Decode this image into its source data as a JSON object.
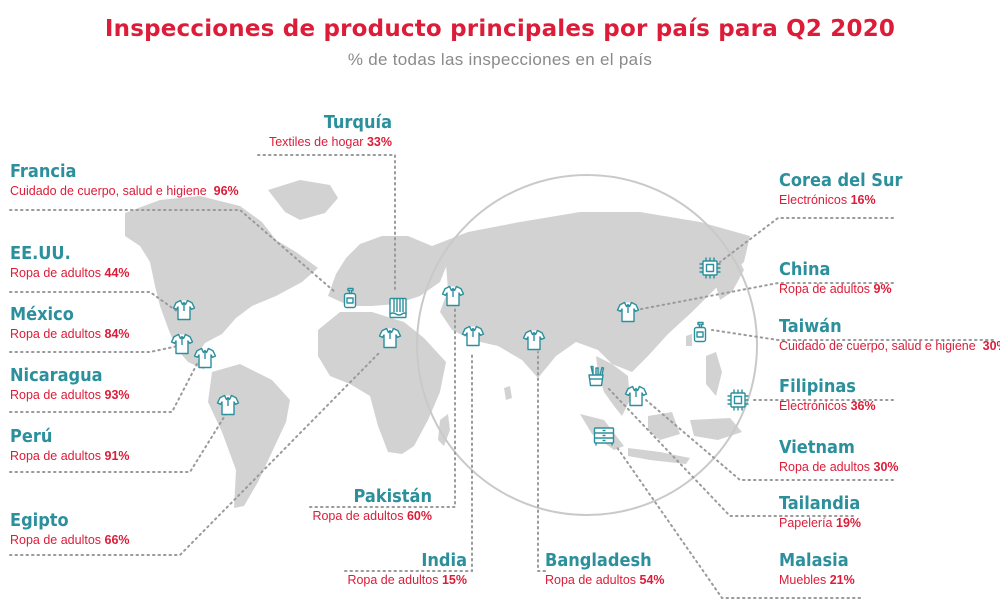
{
  "title": "Inspecciones de producto principales por país para Q2 2020",
  "subtitle": "% de todas las inspecciones en el país",
  "colors": {
    "accent": "#dc1c38",
    "country": "#2b8f9c",
    "land": "#d2d2d2",
    "leader": "#9a9a9a"
  },
  "countries": [
    {
      "id": "turquia",
      "name": "Turquía",
      "category": "Textiles de hogar",
      "percent": "33%",
      "icon": "towel-icon"
    },
    {
      "id": "francia",
      "name": "Francia",
      "category": "Cuidado de cuerpo, salud e higiene",
      "percent": "96%",
      "icon": "lotion-bottle-icon"
    },
    {
      "id": "eeuu",
      "name": "EE.UU.",
      "category": "Ropa de adultos",
      "percent": "44%",
      "icon": "shirt-icon"
    },
    {
      "id": "mexico",
      "name": "México",
      "category": "Ropa de adultos",
      "percent": "84%",
      "icon": "shirt-icon"
    },
    {
      "id": "nicaragua",
      "name": "Nicaragua",
      "category": "Ropa de adultos",
      "percent": "93%",
      "icon": "shirt-icon"
    },
    {
      "id": "peru",
      "name": "Perú",
      "category": "Ropa de adultos",
      "percent": "91%",
      "icon": "shirt-icon"
    },
    {
      "id": "egipto",
      "name": "Egipto",
      "category": "Ropa de adultos",
      "percent": "66%",
      "icon": "shirt-icon"
    },
    {
      "id": "pakistan",
      "name": "Pakistán",
      "category": "Ropa de adultos",
      "percent": "60%",
      "icon": "shirt-icon"
    },
    {
      "id": "india",
      "name": "India",
      "category": "Ropa de adultos",
      "percent": "15%",
      "icon": "shirt-icon"
    },
    {
      "id": "bangladesh",
      "name": "Bangladesh",
      "category": "Ropa de adultos",
      "percent": "54%",
      "icon": "shirt-icon"
    },
    {
      "id": "corea",
      "name": "Corea del Sur",
      "category": "Electrónicos",
      "percent": "16%",
      "icon": "chip-icon"
    },
    {
      "id": "china",
      "name": "China",
      "category": "Ropa de adultos",
      "percent": "9%",
      "icon": "shirt-icon"
    },
    {
      "id": "taiwan",
      "name": "Taiwán",
      "category": "Cuidado de cuerpo, salud e higiene",
      "percent": "30%",
      "icon": "lotion-bottle-icon"
    },
    {
      "id": "filipinas",
      "name": "Filipinas",
      "category": "Electrónicos",
      "percent": "36%",
      "icon": "chip-icon"
    },
    {
      "id": "vietnam",
      "name": "Vietnam",
      "category": "Ropa de adultos",
      "percent": "30%",
      "icon": "shirt-icon"
    },
    {
      "id": "tailandia",
      "name": "Tailandia",
      "category": "Papelería",
      "percent": "19%",
      "icon": "stationery-cup-icon"
    },
    {
      "id": "malasia",
      "name": "Malasia",
      "category": "Muebles",
      "percent": "21%",
      "icon": "drawer-cabinet-icon"
    }
  ]
}
